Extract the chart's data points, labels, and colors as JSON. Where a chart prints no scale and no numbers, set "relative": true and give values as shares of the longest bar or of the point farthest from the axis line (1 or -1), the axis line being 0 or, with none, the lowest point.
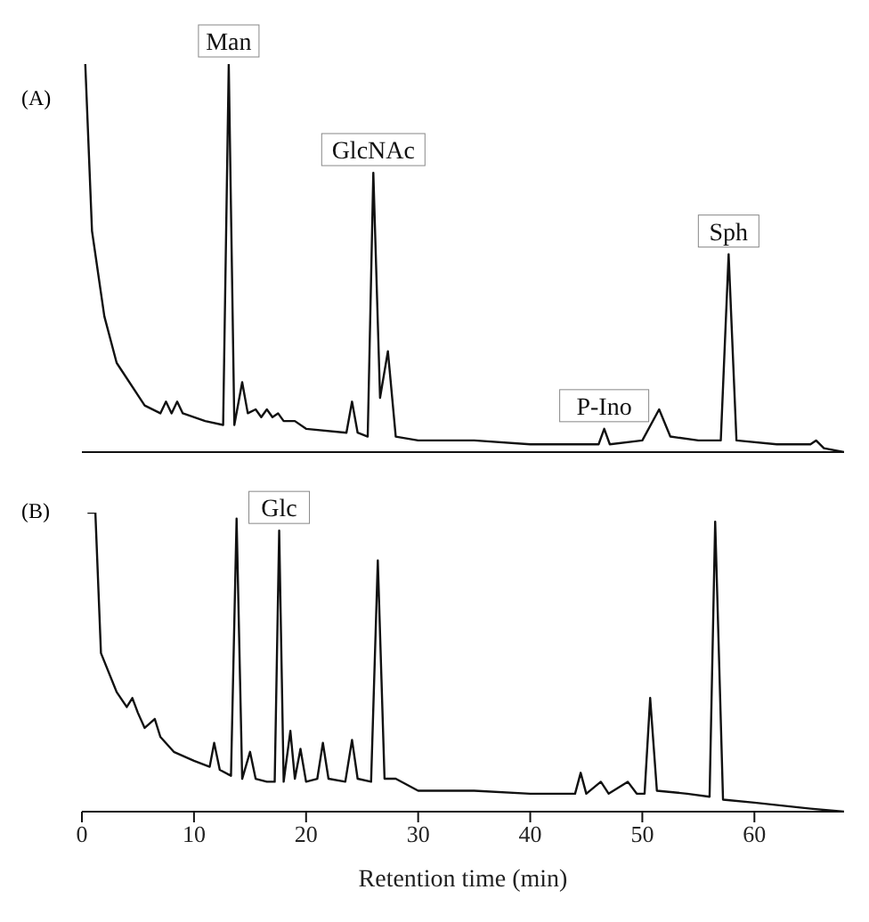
{
  "chart_data": [
    {
      "type": "line",
      "title": "(A)",
      "relative": true,
      "xlim": [
        0,
        68
      ],
      "xticks": [
        0,
        10,
        20,
        30,
        40,
        50,
        60
      ],
      "tick_labels": false,
      "grid": false,
      "legend": false,
      "x": [
        0.3,
        0.9,
        2,
        3.1,
        5.6,
        7,
        7.5,
        8,
        8.5,
        9,
        11,
        12.6,
        13.1,
        13.6,
        14.3,
        14.8,
        15.5,
        16,
        16.5,
        17,
        17.5,
        18,
        19,
        20,
        23.6,
        24.1,
        24.6,
        25.5,
        26.0,
        26.6,
        27.3,
        28,
        30,
        35,
        40,
        45,
        46.1,
        46.6,
        47.1,
        50,
        51.5,
        52.5,
        55,
        57.0,
        57.7,
        58.4,
        62,
        65,
        65.5,
        66.2,
        68
      ],
      "series": [
        {
          "color": "#111111",
          "values": [
            1.0,
            0.57,
            0.35,
            0.23,
            0.12,
            0.1,
            0.13,
            0.1,
            0.13,
            0.1,
            0.08,
            0.07,
            1.0,
            0.07,
            0.18,
            0.1,
            0.11,
            0.09,
            0.11,
            0.09,
            0.1,
            0.08,
            0.08,
            0.06,
            0.05,
            0.13,
            0.05,
            0.04,
            0.72,
            0.14,
            0.26,
            0.04,
            0.03,
            0.03,
            0.02,
            0.02,
            0.02,
            0.06,
            0.02,
            0.03,
            0.11,
            0.04,
            0.03,
            0.03,
            0.51,
            0.03,
            0.02,
            0.02,
            0.03,
            0.01,
            0
          ]
        }
      ],
      "annotations": [
        {
          "text": "Man",
          "x": 13.1,
          "y": 1.0
        },
        {
          "text": "GlcNAc",
          "x": 26.0,
          "y": 0.72
        },
        {
          "text": "P-Ino",
          "x": 46.6,
          "y": 0.06
        },
        {
          "text": "Sph",
          "x": 57.7,
          "y": 0.51
        }
      ]
    },
    {
      "type": "line",
      "title": "(B)",
      "relative": true,
      "xlim": [
        0,
        68
      ],
      "xticks": [
        0,
        10,
        20,
        30,
        40,
        50,
        60
      ],
      "tick_labels": "x",
      "grid": false,
      "legend": false,
      "xlabel": "Retention time (min)",
      "x": [
        0.5,
        1.2,
        1.7,
        3.1,
        4.0,
        4.5,
        5.0,
        5.6,
        6.5,
        7,
        8.2,
        10,
        11.4,
        11.8,
        12.3,
        13.3,
        13.8,
        14.3,
        15,
        15.5,
        16.5,
        17.2,
        17.6,
        18.0,
        18.6,
        19.0,
        19.5,
        20,
        21,
        21.5,
        22,
        23.5,
        24.1,
        24.6,
        25.8,
        26.4,
        27,
        28,
        30,
        35,
        40,
        44,
        44.5,
        45,
        46.3,
        47,
        48.7,
        49.5,
        50.2,
        50.7,
        51.3,
        54,
        56.0,
        56.5,
        57.2,
        60,
        65,
        68
      ],
      "series": [
        {
          "color": "#111111",
          "values": [
            1.0,
            1.0,
            0.53,
            0.4,
            0.35,
            0.38,
            0.33,
            0.28,
            0.31,
            0.25,
            0.2,
            0.17,
            0.15,
            0.23,
            0.14,
            0.12,
            0.98,
            0.11,
            0.2,
            0.11,
            0.1,
            0.1,
            0.94,
            0.1,
            0.27,
            0.11,
            0.21,
            0.1,
            0.11,
            0.23,
            0.11,
            0.1,
            0.24,
            0.11,
            0.1,
            0.84,
            0.11,
            0.11,
            0.07,
            0.07,
            0.06,
            0.06,
            0.13,
            0.06,
            0.1,
            0.06,
            0.1,
            0.06,
            0.06,
            0.38,
            0.07,
            0.06,
            0.05,
            0.97,
            0.04,
            0.03,
            0.01,
            0
          ]
        }
      ],
      "annotations": [
        {
          "text": "Glc",
          "x": 17.6,
          "y": 0.94
        }
      ]
    }
  ]
}
